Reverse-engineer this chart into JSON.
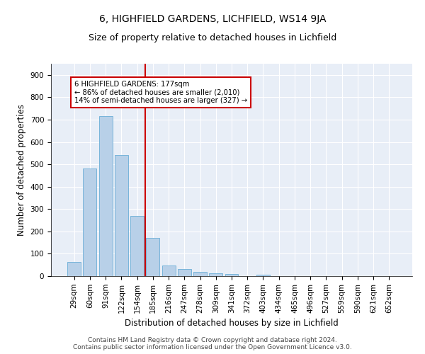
{
  "title": "6, HIGHFIELD GARDENS, LICHFIELD, WS14 9JA",
  "subtitle": "Size of property relative to detached houses in Lichfield",
  "xlabel": "Distribution of detached houses by size in Lichfield",
  "ylabel": "Number of detached properties",
  "categories": [
    "29sqm",
    "60sqm",
    "91sqm",
    "122sqm",
    "154sqm",
    "185sqm",
    "216sqm",
    "247sqm",
    "278sqm",
    "309sqm",
    "341sqm",
    "372sqm",
    "403sqm",
    "434sqm",
    "465sqm",
    "496sqm",
    "527sqm",
    "559sqm",
    "590sqm",
    "621sqm",
    "652sqm"
  ],
  "values": [
    62,
    480,
    715,
    540,
    270,
    172,
    47,
    33,
    18,
    13,
    10,
    0,
    5,
    0,
    0,
    0,
    0,
    0,
    0,
    0,
    0
  ],
  "bar_color": "#b8d0e8",
  "bar_edge_color": "#6aaed6",
  "vline_color": "#cc0000",
  "annotation_text": "6 HIGHFIELD GARDENS: 177sqm\n← 86% of detached houses are smaller (2,010)\n14% of semi-detached houses are larger (327) →",
  "annotation_box_color": "white",
  "annotation_box_edge_color": "#cc0000",
  "ylim": [
    0,
    950
  ],
  "yticks": [
    0,
    100,
    200,
    300,
    400,
    500,
    600,
    700,
    800,
    900
  ],
  "background_color": "#e8eef7",
  "grid_color": "white",
  "footer_text": "Contains HM Land Registry data © Crown copyright and database right 2024.\nContains public sector information licensed under the Open Government Licence v3.0.",
  "title_fontsize": 10,
  "subtitle_fontsize": 9,
  "xlabel_fontsize": 8.5,
  "ylabel_fontsize": 8.5,
  "tick_fontsize": 7.5,
  "footer_fontsize": 6.5
}
